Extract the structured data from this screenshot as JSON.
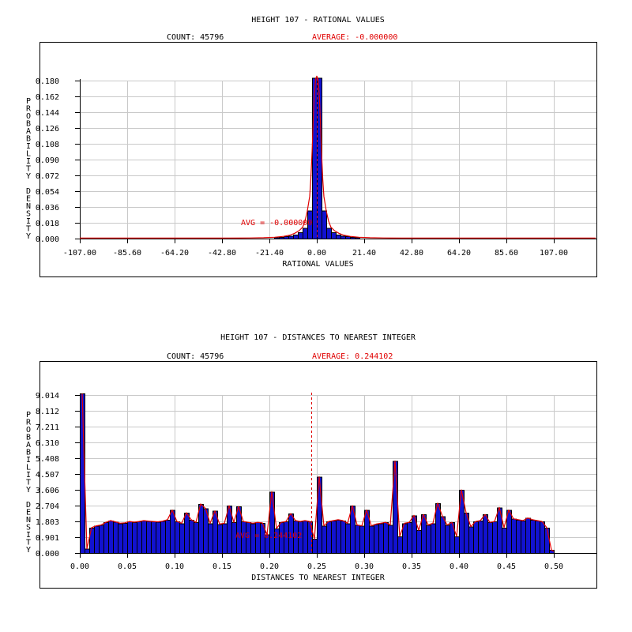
{
  "colors": {
    "background": "#ffffff",
    "bar_fill": "#1212d0",
    "bar_stroke": "#000000",
    "grid": "#c9c9c9",
    "axis": "#000000",
    "red": "#e00000",
    "text": "#000000"
  },
  "chart_data": [
    {
      "type": "bar",
      "title": "HEIGHT 107 - RATIONAL VALUES",
      "count_label": "COUNT: 45796",
      "average_label": "AVERAGE: -0.000000",
      "avg_annotation": "AVG = -0.000000",
      "xlabel": "RATIONAL VALUES",
      "ylabel": "PROBABILITY DENSITY",
      "xlim": [
        -107,
        107
      ],
      "ylim": [
        0,
        0.18
      ],
      "x_ticks": [
        "-107.00",
        "-85.60",
        "-64.20",
        "-42.80",
        "-21.40",
        "0.00",
        "21.40",
        "42.80",
        "64.20",
        "85.60",
        "107.00"
      ],
      "y_ticks": [
        "0.180",
        "0.162",
        "0.144",
        "0.126",
        "0.108",
        "0.090",
        "0.072",
        "0.054",
        "0.036",
        "0.018",
        "0.000"
      ],
      "avg_line_value": 0.0,
      "bin_start": -107,
      "bin_width": 2.14,
      "bins": [
        0,
        0,
        0,
        0,
        0,
        0,
        0,
        0,
        0,
        0,
        0,
        0,
        0,
        0,
        0,
        0,
        0,
        0,
        0,
        0,
        0,
        0,
        0,
        0,
        0,
        0,
        0,
        0,
        0,
        0,
        0,
        0,
        0,
        0,
        0,
        0,
        0,
        0,
        0,
        0,
        0,
        0.0015,
        0.002,
        0.0025,
        0.003,
        0.0045,
        0.007,
        0.012,
        0.032,
        0.183,
        0.183,
        0.032,
        0.012,
        0.007,
        0.0045,
        0.003,
        0.0025,
        0.002,
        0.0015,
        0,
        0,
        0,
        0,
        0,
        0,
        0,
        0,
        0,
        0,
        0,
        0,
        0,
        0,
        0,
        0,
        0,
        0,
        0,
        0,
        0,
        0,
        0,
        0,
        0,
        0,
        0,
        0,
        0,
        0,
        0,
        0,
        0,
        0,
        0,
        0,
        0,
        0,
        0,
        0,
        0
      ],
      "red_curve": [
        [
          -107,
          0.0005
        ],
        [
          -40,
          0.0005
        ],
        [
          -30,
          0.0007
        ],
        [
          -24,
          0.001
        ],
        [
          -19,
          0.0015
        ],
        [
          -15,
          0.0025
        ],
        [
          -12,
          0.004
        ],
        [
          -10,
          0.006
        ],
        [
          -8,
          0.009
        ],
        [
          -6.4,
          0.013
        ],
        [
          -5.3,
          0.02
        ],
        [
          -4.3,
          0.031
        ],
        [
          -3.2,
          0.048
        ],
        [
          -2.7,
          0.067
        ],
        [
          -2.1,
          0.1
        ],
        [
          -1.6,
          0.135
        ],
        [
          -1.1,
          0.165
        ],
        [
          -0.5,
          0.182
        ],
        [
          0,
          0.185
        ],
        [
          0.5,
          0.182
        ],
        [
          1.1,
          0.165
        ],
        [
          1.6,
          0.135
        ],
        [
          2.1,
          0.1
        ],
        [
          2.7,
          0.067
        ],
        [
          3.2,
          0.048
        ],
        [
          4.3,
          0.031
        ],
        [
          5.3,
          0.02
        ],
        [
          6.4,
          0.013
        ],
        [
          8,
          0.009
        ],
        [
          10,
          0.006
        ],
        [
          12,
          0.004
        ],
        [
          15,
          0.0025
        ],
        [
          19,
          0.0015
        ],
        [
          24,
          0.001
        ],
        [
          30,
          0.0007
        ],
        [
          40,
          0.0005
        ],
        [
          107,
          0.0005
        ]
      ],
      "extend_curve_to_box_right": true,
      "curve_from_bins": false,
      "grid": true
    },
    {
      "type": "bar",
      "title": "HEIGHT 107 - DISTANCES TO NEAREST INTEGER",
      "count_label": "COUNT: 45796",
      "average_label": "AVERAGE: 0.244102",
      "avg_annotation": "AVG = 0.244102",
      "xlabel": "DISTANCES TO NEAREST INTEGER",
      "ylabel": "PROBABILITY DENSITY",
      "xlim": [
        0,
        0.5
      ],
      "ylim": [
        0,
        9.014
      ],
      "x_ticks": [
        "0.00",
        "0.05",
        "0.10",
        "0.15",
        "0.20",
        "0.25",
        "0.30",
        "0.35",
        "0.40",
        "0.45",
        "0.50"
      ],
      "y_ticks": [
        "9.014",
        "8.112",
        "7.211",
        "6.310",
        "5.408",
        "4.507",
        "3.606",
        "2.704",
        "1.803",
        "0.901",
        "0.000"
      ],
      "avg_line_value": 0.244102,
      "bin_start": 0,
      "bin_width": 0.005,
      "bins": [
        9.1,
        0.25,
        1.45,
        1.55,
        1.6,
        1.75,
        1.85,
        1.78,
        1.7,
        1.72,
        1.8,
        1.76,
        1.8,
        1.85,
        1.82,
        1.8,
        1.78,
        1.82,
        1.9,
        2.45,
        1.8,
        1.7,
        2.3,
        1.9,
        1.75,
        2.8,
        2.55,
        1.7,
        2.4,
        1.65,
        1.7,
        2.7,
        1.75,
        2.65,
        1.8,
        1.75,
        1.7,
        1.75,
        1.72,
        1.05,
        3.5,
        1.4,
        1.75,
        1.8,
        2.25,
        1.85,
        1.8,
        1.85,
        1.8,
        0.8,
        4.35,
        1.55,
        1.8,
        1.85,
        1.9,
        1.85,
        1.7,
        2.7,
        1.6,
        1.55,
        2.45,
        1.55,
        1.65,
        1.7,
        1.75,
        1.6,
        5.25,
        0.95,
        1.7,
        1.75,
        2.15,
        1.3,
        2.2,
        1.6,
        1.7,
        2.85,
        2.1,
        1.6,
        1.75,
        0.95,
        3.6,
        2.3,
        1.5,
        1.8,
        1.85,
        2.2,
        1.75,
        1.8,
        2.6,
        1.45,
        2.45,
        1.95,
        1.9,
        1.85,
        2.0,
        1.9,
        1.85,
        1.8,
        1.45,
        0.18
      ],
      "curve_from_bins": true,
      "curve_end_drop": 0.1,
      "extend_curve_to_box_right": false,
      "grid": true
    }
  ]
}
